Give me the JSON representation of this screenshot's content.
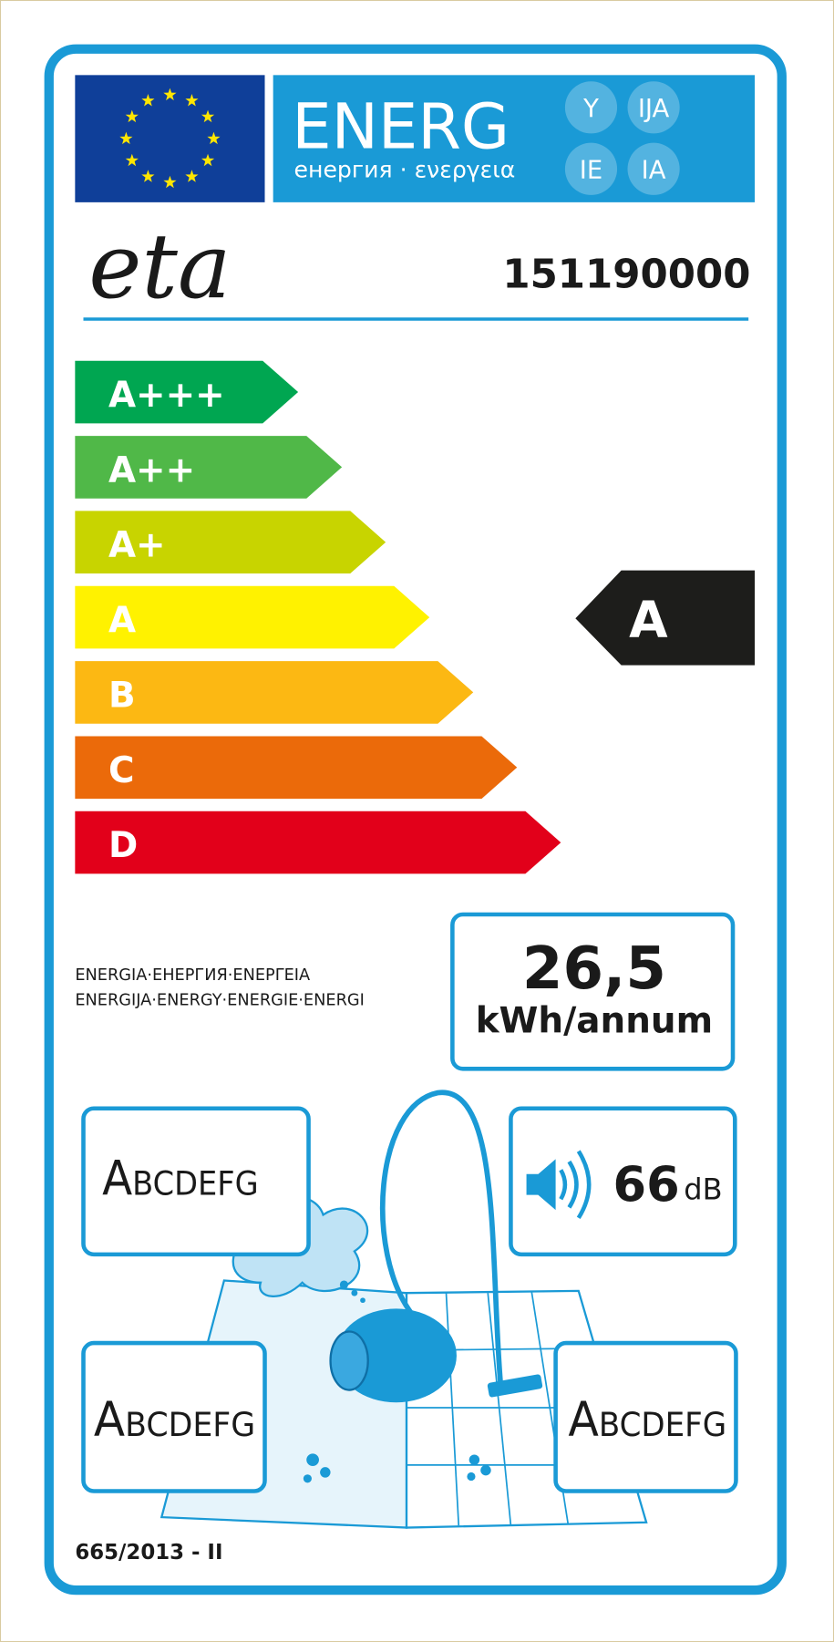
{
  "header": {
    "title": "ENERG",
    "subtitle": "енергия · ενεργεια",
    "suffixes": [
      "Y",
      "IJA",
      "IE",
      "IA"
    ]
  },
  "supplier": "eta",
  "model": "151190000",
  "classes": [
    "A+++",
    "A++",
    "A+",
    "A",
    "B",
    "C",
    "D"
  ],
  "rating": "A",
  "energy_text": [
    "ENERGIA·ЕНЕРГИЯ·ΕΝΕΡΓΕΙΑ",
    "ENERGIJA·ENERGY·ENERGIE·ENERGI"
  ],
  "consumption": {
    "value": "26,5",
    "unit": "kWh/annum"
  },
  "noise": {
    "value": "66",
    "unit": "dB"
  },
  "classes_scale": [
    "ABCDEFG",
    "ABCDEFG",
    "ABCDEFG"
  ],
  "regulation": "665/2013 - II"
}
